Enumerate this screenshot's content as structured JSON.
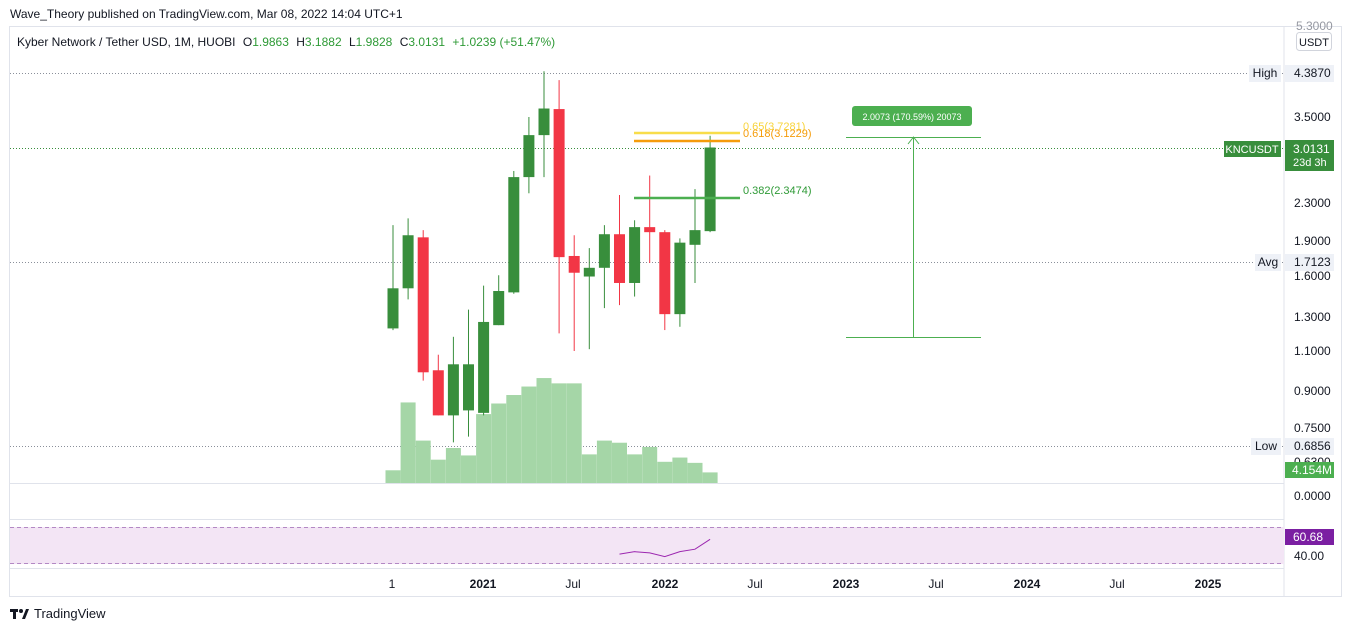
{
  "header": {
    "published": "Wave_Theory published on TradingView.com, Mar 08, 2022 14:04 UTC+1"
  },
  "symbol": {
    "name": "Kyber Network / Tether USD, 1M, HUOBI",
    "o_label": "O",
    "o": "1.9863",
    "h_label": "H",
    "h": "3.1882",
    "l_label": "L",
    "l": "1.9828",
    "c_label": "C",
    "c": "3.0131",
    "change": "+1.0239 (+51.47%)"
  },
  "colors": {
    "up": "#388e3c",
    "down": "#f23645",
    "volume": "#a5d6a7",
    "fib618": "#f59c0b",
    "fib65": "#f8dd4a",
    "fib382": "#4caf50",
    "rsi": "#9c27b0",
    "rsi_band": "#f3e5f5"
  },
  "price_axis": {
    "unit": "USDT",
    "ticks": [
      "3.5000",
      "2.3000",
      "1.9000",
      "1.6000",
      "1.3000",
      "1.1000",
      "0.9000",
      "0.7500",
      "0.6300",
      "0.0000"
    ],
    "top_cut": "5.3000"
  },
  "markers": {
    "high_label": "High",
    "high_value": "4.3870",
    "avg_label": "Avg",
    "avg_value": "1.7123",
    "low_label": "Low",
    "low_value": "0.6856",
    "last_symbol": "KNCUSDT",
    "last_value": "3.0131",
    "countdown": "23d 3h",
    "volume_value": "4.154M"
  },
  "annotations": {
    "fib65": "0.65(3.7281)",
    "fib618": "0.618(3.1229)",
    "fib382": "0.382(2.3474)",
    "measure": "2.0073 (170.59%) 20073"
  },
  "rsi": {
    "value": "60.68",
    "level": "40.00"
  },
  "time_axis": [
    "1",
    "2021",
    "Jul",
    "2022",
    "Jul",
    "2023",
    "Jul",
    "2024",
    "Jul",
    "2025"
  ],
  "brand": {
    "name": "TradingView"
  },
  "chart_data": {
    "type": "candlestick",
    "title": "Kyber Network / Tether USD, 1M, HUOBI",
    "series": [
      {
        "name": "KNCUSDT",
        "values": [
          {
            "o": 1.23,
            "h": 2.05,
            "l": 1.22,
            "c": 1.5
          },
          {
            "o": 1.5,
            "h": 2.12,
            "l": 1.42,
            "c": 1.95
          },
          {
            "o": 1.93,
            "h": 2.0,
            "l": 0.95,
            "c": 0.99
          },
          {
            "o": 1.0,
            "h": 1.08,
            "l": 0.8,
            "c": 0.8
          },
          {
            "o": 0.8,
            "h": 1.18,
            "l": 0.7,
            "c": 1.03
          },
          {
            "o": 0.82,
            "h": 1.35,
            "l": 0.72,
            "c": 1.03
          },
          {
            "o": 0.81,
            "h": 1.52,
            "l": 0.8,
            "c": 1.27
          },
          {
            "o": 1.25,
            "h": 1.6,
            "l": 1.25,
            "c": 1.48
          },
          {
            "o": 1.47,
            "h": 2.68,
            "l": 1.46,
            "c": 2.6
          },
          {
            "o": 2.6,
            "h": 3.5,
            "l": 2.4,
            "c": 3.2
          },
          {
            "o": 3.2,
            "h": 4.39,
            "l": 2.6,
            "c": 3.65
          },
          {
            "o": 3.64,
            "h": 4.2,
            "l": 1.2,
            "c": 1.75
          },
          {
            "o": 1.76,
            "h": 1.95,
            "l": 1.1,
            "c": 1.62
          },
          {
            "o": 1.59,
            "h": 1.83,
            "l": 1.11,
            "c": 1.66
          },
          {
            "o": 1.66,
            "h": 2.05,
            "l": 1.36,
            "c": 1.96
          },
          {
            "o": 1.96,
            "h": 2.38,
            "l": 1.38,
            "c": 1.54
          },
          {
            "o": 1.54,
            "h": 2.1,
            "l": 1.44,
            "c": 2.03
          },
          {
            "o": 2.03,
            "h": 2.62,
            "l": 1.7,
            "c": 1.98
          },
          {
            "o": 1.98,
            "h": 2.0,
            "l": 1.22,
            "c": 1.32
          },
          {
            "o": 1.32,
            "h": 1.92,
            "l": 1.24,
            "c": 1.88
          },
          {
            "o": 1.86,
            "h": 2.45,
            "l": 1.54,
            "c": 2.0
          },
          {
            "o": 1.99,
            "h": 3.19,
            "l": 1.98,
            "c": 3.01
          }
        ]
      },
      {
        "name": "Volume",
        "values": [
          12,
          76,
          40,
          22,
          33,
          26,
          65,
          75,
          83,
          91,
          99,
          94,
          94,
          27,
          40,
          38,
          27,
          34,
          20,
          24,
          19,
          10
        ]
      }
    ],
    "rsi": [
      48,
      50,
      49,
      46,
      50,
      52,
      60
    ],
    "fib_levels": [
      {
        "level": 0.65,
        "price": 3.7281
      },
      {
        "level": 0.618,
        "price": 3.1229
      },
      {
        "level": 0.382,
        "price": 2.3474
      }
    ],
    "ylim": [
      0.55,
      5.3
    ],
    "scale": "log",
    "grid": false
  }
}
